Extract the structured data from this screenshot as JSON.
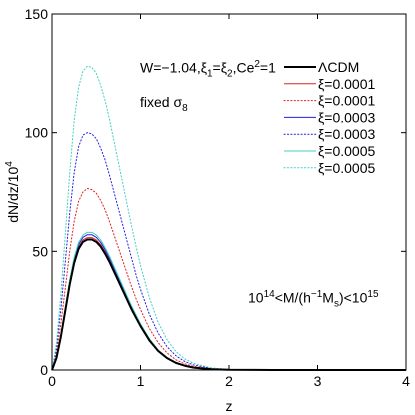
{
  "chart_data": {
    "type": "line",
    "xlabel": "z",
    "ylabel": "dN/dz/10",
    "ylabel_sup": "4",
    "xlim": [
      0,
      4
    ],
    "ylim": [
      0,
      150
    ],
    "xticks": [
      0,
      1,
      2,
      3,
      4
    ],
    "yticks": [
      0,
      50,
      100,
      150
    ],
    "xtick_labels": [
      "0",
      "1",
      "2",
      "3",
      "4"
    ],
    "ytick_labels": [
      "0",
      "50",
      "100",
      "150"
    ],
    "grid": false,
    "legend_position": "top-right",
    "annotations": {
      "params": {
        "w_part": "W=−1.04,ξ",
        "sub1": "1",
        "mid": "=ξ",
        "sub2": "2",
        "ce_part": ",Ce",
        "sup": "2",
        "end": "=1"
      },
      "sigma": {
        "text": "fixed σ",
        "sub": "8"
      },
      "mass": {
        "base1": "10",
        "sup1": "14",
        "middle": "<M/(h",
        "sup2": "−1",
        "middle2": "M",
        "sub": "s",
        "end": ")<10",
        "sup3": "15"
      }
    },
    "x": [
      0,
      0.05,
      0.1,
      0.15,
      0.2,
      0.25,
      0.3,
      0.35,
      0.4,
      0.45,
      0.5,
      0.55,
      0.6,
      0.65,
      0.7,
      0.75,
      0.8,
      0.85,
      0.9,
      0.95,
      1.0,
      1.1,
      1.2,
      1.3,
      1.4,
      1.5,
      1.6,
      1.8,
      2.0,
      2.5,
      3.0,
      4.0
    ],
    "series": [
      {
        "name": "ΛCDM",
        "color": "#000000",
        "style": "solid",
        "width": 2.0,
        "values": [
          0,
          5,
          14,
          25,
          36,
          45,
          51,
          54,
          55,
          55,
          54,
          52,
          49,
          45.5,
          41.5,
          37.5,
          33.5,
          29.5,
          25.5,
          22,
          18.5,
          12.5,
          8,
          5,
          3,
          1.8,
          1.0,
          0.3,
          0.08,
          0,
          0,
          0
        ]
      },
      {
        "name": "ξ=0.0001",
        "color": "#e02020",
        "style": "solid",
        "width": 1.0,
        "values": [
          0,
          5.1,
          14.3,
          25.4,
          36.6,
          45.7,
          51.8,
          54.8,
          55.8,
          55.8,
          54.8,
          52.8,
          49.8,
          46.2,
          42.1,
          38.1,
          34,
          30,
          25.9,
          22.3,
          18.8,
          12.7,
          8.1,
          5.1,
          3,
          1.8,
          1.0,
          0.3,
          0.08,
          0,
          0,
          0
        ]
      },
      {
        "name": "ξ=0.0001",
        "color": "#e02020",
        "style": "dotted",
        "width": 1.0,
        "values": [
          0,
          7,
          19.5,
          34.5,
          50,
          62.5,
          71,
          75,
          76.5,
          76,
          74.5,
          71.5,
          67.5,
          62.5,
          57,
          51.5,
          46,
          40.5,
          35,
          30,
          25.5,
          17.5,
          11.5,
          7.2,
          4.3,
          2.6,
          1.5,
          0.5,
          0.12,
          0,
          0,
          0
        ]
      },
      {
        "name": "ξ=0.0003",
        "color": "#2020e0",
        "style": "solid",
        "width": 1.0,
        "values": [
          0,
          5.2,
          14.6,
          26,
          37.4,
          46.6,
          52.8,
          55.9,
          57,
          57,
          55.9,
          53.8,
          50.7,
          47.1,
          43,
          38.8,
          34.7,
          30.5,
          26.4,
          22.8,
          19.2,
          13,
          8.3,
          5.2,
          3.1,
          1.9,
          1.0,
          0.3,
          0.08,
          0,
          0,
          0
        ]
      },
      {
        "name": "ξ=0.0003",
        "color": "#2020e0",
        "style": "dotted",
        "width": 1.0,
        "values": [
          0,
          9,
          25.5,
          45.5,
          66,
          83,
          94,
          99,
          100,
          99.5,
          97.5,
          93.5,
          88.5,
          82,
          75,
          68,
          61,
          54,
          47,
          40,
          34,
          23.5,
          15.5,
          9.8,
          6,
          3.6,
          2.1,
          0.7,
          0.2,
          0,
          0,
          0
        ]
      },
      {
        "name": "ξ=0.0005",
        "color": "#40d0c0",
        "style": "solid",
        "width": 1.0,
        "values": [
          0,
          5.3,
          14.8,
          26.4,
          38,
          47.4,
          53.7,
          56.9,
          58,
          58,
          56.9,
          54.8,
          51.6,
          47.9,
          43.7,
          39.5,
          35.3,
          31.1,
          26.9,
          23.2,
          19.5,
          13.2,
          8.4,
          5.3,
          3.2,
          1.9,
          1.1,
          0.3,
          0.08,
          0,
          0,
          0
        ]
      },
      {
        "name": "ξ=0.0005",
        "color": "#40d0c0",
        "style": "dotted",
        "width": 1.0,
        "values": [
          0,
          11,
          32,
          57,
          83,
          105,
          119,
          126,
          128,
          127.5,
          125,
          120,
          113.5,
          105.5,
          96.5,
          87.5,
          78.5,
          69.5,
          60.5,
          52,
          44,
          30.5,
          20,
          12.8,
          7.8,
          4.7,
          2.8,
          0.9,
          0.25,
          0,
          0,
          0
        ]
      }
    ]
  }
}
